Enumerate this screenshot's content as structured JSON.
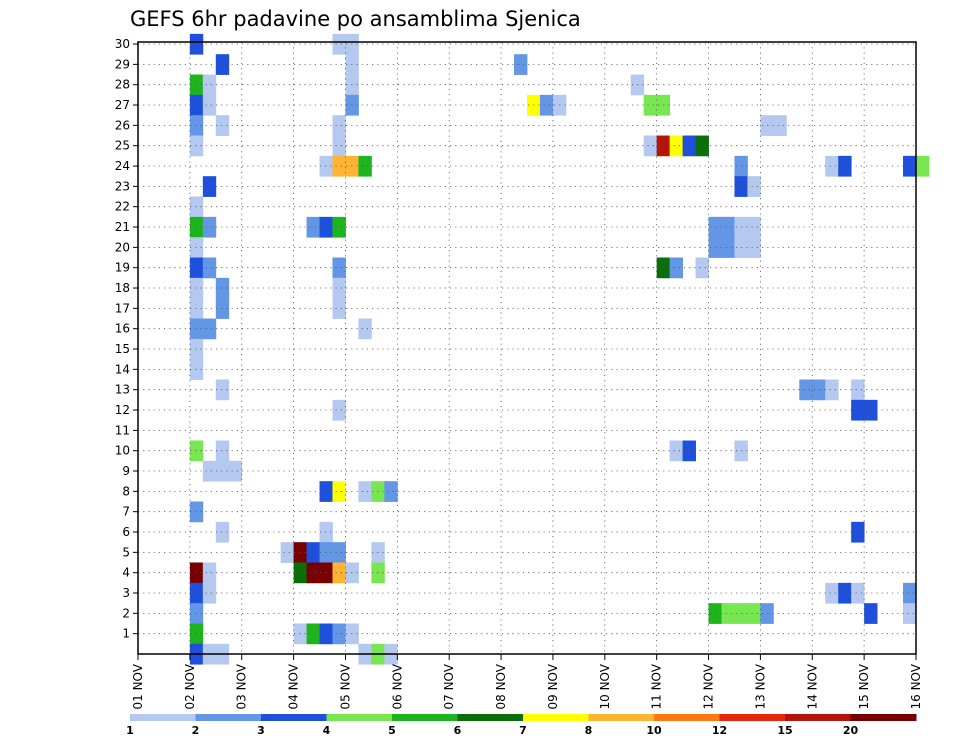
{
  "chart_data": {
    "type": "heatmap",
    "title": "GEFS 6hr padavine po ansamblima Sjenica",
    "xlabel": "",
    "ylabel": "",
    "x_tick_labels": [
      "01 NOV",
      "02 NOV",
      "03 NOV",
      "04 NOV",
      "05 NOV",
      "06 NOV",
      "07 NOV",
      "08 NOV",
      "09 NOV",
      "10 NOV",
      "11 NOV",
      "12 NOV",
      "13 NOV",
      "14 NOV",
      "15 NOV",
      "16 NOV"
    ],
    "xlim_days": [
      1,
      16
    ],
    "y_members": [
      1,
      2,
      3,
      4,
      5,
      6,
      7,
      8,
      9,
      10,
      11,
      12,
      13,
      14,
      15,
      16,
      17,
      18,
      19,
      20,
      21,
      22,
      23,
      24,
      25,
      26,
      27,
      28,
      29,
      30
    ],
    "ylim": [
      0,
      30
    ],
    "grid": true,
    "legend": {
      "placement": "bottom",
      "labels": [
        "1",
        "2",
        "3",
        "4",
        "5",
        "6",
        "7",
        "8",
        "10",
        "12",
        "15",
        "20"
      ],
      "colors": [
        "#b4c8f0",
        "#6496e6",
        "#1e50dc",
        "#78e650",
        "#1eb41e",
        "#0a6e0a",
        "#ffff00",
        "#ffb432",
        "#ff7814",
        "#e6280a",
        "#b4140a",
        "#780000"
      ]
    },
    "cells_note": "each cell: member row, step = 6-hour step since 01 NOV 00Z, class = legend color index",
    "cells": [
      {
        "member": 30,
        "step": 4,
        "class": 2
      },
      {
        "member": 30,
        "step": 15,
        "class": 0
      },
      {
        "member": 30,
        "step": 16,
        "class": 0
      },
      {
        "member": 29,
        "step": 6,
        "class": 2
      },
      {
        "member": 29,
        "step": 16,
        "class": 0
      },
      {
        "member": 29,
        "step": 29,
        "class": 1
      },
      {
        "member": 28,
        "step": 4,
        "class": 4
      },
      {
        "member": 28,
        "step": 5,
        "class": 0
      },
      {
        "member": 28,
        "step": 16,
        "class": 0
      },
      {
        "member": 28,
        "step": 38,
        "class": 0
      },
      {
        "member": 27,
        "step": 4,
        "class": 2
      },
      {
        "member": 27,
        "step": 5,
        "class": 0
      },
      {
        "member": 27,
        "step": 16,
        "class": 1
      },
      {
        "member": 27,
        "step": 30,
        "class": 6
      },
      {
        "member": 27,
        "step": 31,
        "class": 1
      },
      {
        "member": 27,
        "step": 32,
        "class": 0
      },
      {
        "member": 27,
        "step": 39,
        "class": 3
      },
      {
        "member": 27,
        "step": 40,
        "class": 3
      },
      {
        "member": 26,
        "step": 4,
        "class": 1
      },
      {
        "member": 26,
        "step": 6,
        "class": 0
      },
      {
        "member": 26,
        "step": 15,
        "class": 0
      },
      {
        "member": 26,
        "step": 48,
        "class": 0
      },
      {
        "member": 26,
        "step": 49,
        "class": 0
      },
      {
        "member": 25,
        "step": 4,
        "class": 0
      },
      {
        "member": 25,
        "step": 15,
        "class": 0
      },
      {
        "member": 25,
        "step": 39,
        "class": 0
      },
      {
        "member": 25,
        "step": 40,
        "class": 10
      },
      {
        "member": 25,
        "step": 41,
        "class": 6
      },
      {
        "member": 25,
        "step": 42,
        "class": 2
      },
      {
        "member": 25,
        "step": 43,
        "class": 5
      },
      {
        "member": 24,
        "step": 14,
        "class": 0
      },
      {
        "member": 24,
        "step": 15,
        "class": 7
      },
      {
        "member": 24,
        "step": 16,
        "class": 7
      },
      {
        "member": 24,
        "step": 17,
        "class": 4
      },
      {
        "member": 24,
        "step": 46,
        "class": 1
      },
      {
        "member": 24,
        "step": 53,
        "class": 0
      },
      {
        "member": 24,
        "step": 54,
        "class": 2
      },
      {
        "member": 24,
        "step": 59,
        "class": 2
      },
      {
        "member": 24,
        "step": 60,
        "class": 3
      },
      {
        "member": 23,
        "step": 5,
        "class": 2
      },
      {
        "member": 23,
        "step": 46,
        "class": 2
      },
      {
        "member": 23,
        "step": 47,
        "class": 0
      },
      {
        "member": 22,
        "step": 4,
        "class": 0
      },
      {
        "member": 21,
        "step": 4,
        "class": 4
      },
      {
        "member": 21,
        "step": 5,
        "class": 1
      },
      {
        "member": 21,
        "step": 13,
        "class": 1
      },
      {
        "member": 21,
        "step": 14,
        "class": 2
      },
      {
        "member": 21,
        "step": 15,
        "class": 4
      },
      {
        "member": 21,
        "step": 44,
        "class": 1
      },
      {
        "member": 21,
        "step": 45,
        "class": 1
      },
      {
        "member": 21,
        "step": 46,
        "class": 0
      },
      {
        "member": 21,
        "step": 47,
        "class": 0
      },
      {
        "member": 20,
        "step": 4,
        "class": 0
      },
      {
        "member": 20,
        "step": 44,
        "class": 1
      },
      {
        "member": 20,
        "step": 45,
        "class": 1
      },
      {
        "member": 20,
        "step": 46,
        "class": 0
      },
      {
        "member": 20,
        "step": 47,
        "class": 0
      },
      {
        "member": 19,
        "step": 4,
        "class": 2
      },
      {
        "member": 19,
        "step": 5,
        "class": 1
      },
      {
        "member": 19,
        "step": 15,
        "class": 1
      },
      {
        "member": 19,
        "step": 40,
        "class": 5
      },
      {
        "member": 19,
        "step": 41,
        "class": 1
      },
      {
        "member": 19,
        "step": 43,
        "class": 0
      },
      {
        "member": 18,
        "step": 4,
        "class": 0
      },
      {
        "member": 18,
        "step": 6,
        "class": 1
      },
      {
        "member": 18,
        "step": 15,
        "class": 0
      },
      {
        "member": 17,
        "step": 4,
        "class": 0
      },
      {
        "member": 17,
        "step": 6,
        "class": 1
      },
      {
        "member": 17,
        "step": 15,
        "class": 0
      },
      {
        "member": 16,
        "step": 4,
        "class": 1
      },
      {
        "member": 16,
        "step": 5,
        "class": 1
      },
      {
        "member": 16,
        "step": 17,
        "class": 0
      },
      {
        "member": 15,
        "step": 4,
        "class": 0
      },
      {
        "member": 14,
        "step": 4,
        "class": 0
      },
      {
        "member": 13,
        "step": 6,
        "class": 0
      },
      {
        "member": 13,
        "step": 51,
        "class": 1
      },
      {
        "member": 13,
        "step": 52,
        "class": 1
      },
      {
        "member": 13,
        "step": 53,
        "class": 0
      },
      {
        "member": 13,
        "step": 55,
        "class": 0
      },
      {
        "member": 12,
        "step": 15,
        "class": 0
      },
      {
        "member": 12,
        "step": 55,
        "class": 2
      },
      {
        "member": 12,
        "step": 56,
        "class": 2
      },
      {
        "member": 10,
        "step": 4,
        "class": 3
      },
      {
        "member": 10,
        "step": 6,
        "class": 0
      },
      {
        "member": 10,
        "step": 41,
        "class": 0
      },
      {
        "member": 10,
        "step": 42,
        "class": 2
      },
      {
        "member": 10,
        "step": 46,
        "class": 0
      },
      {
        "member": 9,
        "step": 5,
        "class": 0
      },
      {
        "member": 9,
        "step": 6,
        "class": 0
      },
      {
        "member": 9,
        "step": 7,
        "class": 0
      },
      {
        "member": 8,
        "step": 14,
        "class": 2
      },
      {
        "member": 8,
        "step": 15,
        "class": 6
      },
      {
        "member": 8,
        "step": 17,
        "class": 0
      },
      {
        "member": 8,
        "step": 18,
        "class": 3
      },
      {
        "member": 8,
        "step": 19,
        "class": 1
      },
      {
        "member": 7,
        "step": 4,
        "class": 1
      },
      {
        "member": 6,
        "step": 6,
        "class": 0
      },
      {
        "member": 6,
        "step": 14,
        "class": 0
      },
      {
        "member": 6,
        "step": 55,
        "class": 2
      },
      {
        "member": 5,
        "step": 11,
        "class": 0
      },
      {
        "member": 5,
        "step": 12,
        "class": 11
      },
      {
        "member": 5,
        "step": 13,
        "class": 2
      },
      {
        "member": 5,
        "step": 14,
        "class": 1
      },
      {
        "member": 5,
        "step": 15,
        "class": 1
      },
      {
        "member": 5,
        "step": 18,
        "class": 0
      },
      {
        "member": 4,
        "step": 4,
        "class": 11
      },
      {
        "member": 4,
        "step": 5,
        "class": 0
      },
      {
        "member": 4,
        "step": 12,
        "class": 5
      },
      {
        "member": 4,
        "step": 13,
        "class": 11
      },
      {
        "member": 4,
        "step": 14,
        "class": 11
      },
      {
        "member": 4,
        "step": 15,
        "class": 7
      },
      {
        "member": 4,
        "step": 16,
        "class": 0
      },
      {
        "member": 4,
        "step": 18,
        "class": 3
      },
      {
        "member": 3,
        "step": 4,
        "class": 2
      },
      {
        "member": 3,
        "step": 5,
        "class": 0
      },
      {
        "member": 3,
        "step": 53,
        "class": 0
      },
      {
        "member": 3,
        "step": 54,
        "class": 2
      },
      {
        "member": 3,
        "step": 55,
        "class": 0
      },
      {
        "member": 3,
        "step": 59,
        "class": 1
      },
      {
        "member": 2,
        "step": 4,
        "class": 1
      },
      {
        "member": 2,
        "step": 44,
        "class": 4
      },
      {
        "member": 2,
        "step": 45,
        "class": 3
      },
      {
        "member": 2,
        "step": 46,
        "class": 3
      },
      {
        "member": 2,
        "step": 47,
        "class": 3
      },
      {
        "member": 2,
        "step": 48,
        "class": 1
      },
      {
        "member": 2,
        "step": 56,
        "class": 2
      },
      {
        "member": 2,
        "step": 59,
        "class": 0
      },
      {
        "member": 1,
        "step": 4,
        "class": 4
      },
      {
        "member": 1,
        "step": 12,
        "class": 0
      },
      {
        "member": 1,
        "step": 13,
        "class": 4
      },
      {
        "member": 1,
        "step": 14,
        "class": 2
      },
      {
        "member": 1,
        "step": 15,
        "class": 1
      },
      {
        "member": 1,
        "step": 16,
        "class": 0
      },
      {
        "member": 0,
        "step": 4,
        "class": 2
      },
      {
        "member": 0,
        "step": 5,
        "class": 0
      },
      {
        "member": 0,
        "step": 6,
        "class": 0
      },
      {
        "member": 0,
        "step": 17,
        "class": 0
      },
      {
        "member": 0,
        "step": 18,
        "class": 3
      },
      {
        "member": 0,
        "step": 19,
        "class": 0
      }
    ]
  }
}
